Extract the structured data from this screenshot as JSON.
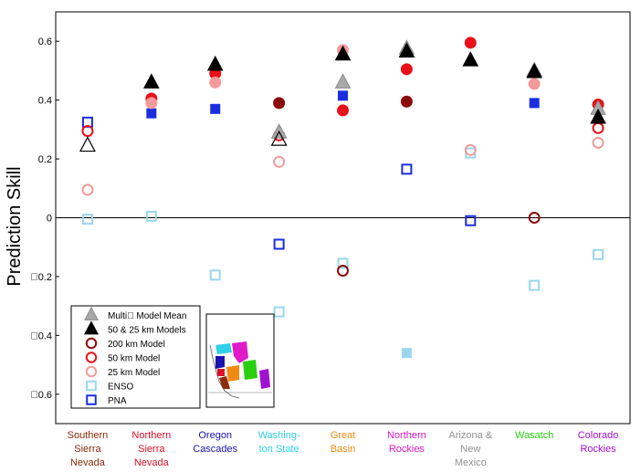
{
  "chart_data": {
    "type": "scatter",
    "ylabel": "Prediction Skill",
    "ylim": [
      -0.7,
      0.7
    ],
    "yticks": [
      "0.6",
      "0.4",
      "0.2",
      "0",
      "\u00000.2",
      "\u00000.4",
      "\u00000.6"
    ],
    "yticks_values": [
      0.6,
      0.4,
      0.2,
      0,
      -0.2,
      -0.4,
      -0.6
    ],
    "grid": false,
    "zero_line": true,
    "legend_position": "bottom-left",
    "categories": [
      {
        "lines": [
          "Southern",
          "Sierra",
          "Nevada"
        ],
        "color": "#8B2B0B"
      },
      {
        "lines": [
          "Northern",
          "Sierra",
          "Nevada"
        ],
        "color": "#E0102A"
      },
      {
        "lines": [
          "Oregon",
          "Cascades"
        ],
        "color": "#1A12B0"
      },
      {
        "lines": [
          "Washing-",
          "ton State"
        ],
        "color": "#2ED0E8"
      },
      {
        "lines": [
          "Great",
          "Basin"
        ],
        "color": "#F08A10"
      },
      {
        "lines": [
          "Northern",
          "Rockies"
        ],
        "color": "#E01AC8"
      },
      {
        "lines": [
          "Arizona &",
          "New",
          "Mexico"
        ],
        "color": "#909090"
      },
      {
        "lines": [
          "Wasatch"
        ],
        "color": "#28D010"
      },
      {
        "lines": [
          "Colorado",
          "Rockies"
        ],
        "color": "#A010D0"
      }
    ],
    "series": [
      {
        "name": "Multi Model Mean",
        "marker": "triangle-filled",
        "color": "#A8A8A8",
        "values": [
          null,
          null,
          null,
          0.29,
          0.46,
          0.575,
          null,
          0.5,
          0.37
        ]
      },
      {
        "name": "50 & 25 km Models",
        "marker": "triangle-filled",
        "color": "#000000",
        "values": [
          null,
          0.46,
          0.52,
          null,
          0.555,
          0.565,
          0.535,
          0.495,
          0.34
        ]
      },
      {
        "name": "50 & 25 km Models (open)",
        "marker": "triangle-open",
        "color": "#000000",
        "values": [
          0.245,
          null,
          null,
          0.265,
          null,
          null,
          null,
          null,
          null
        ]
      },
      {
        "name": "200 km Model",
        "marker": "circle-filled",
        "color": "#8B0A0A",
        "values": [
          null,
          null,
          null,
          0.39,
          null,
          0.395,
          null,
          null,
          null
        ]
      },
      {
        "name": "200 km Model (open)",
        "marker": "circle-open",
        "color": "#8B0A0A",
        "values": [
          null,
          null,
          null,
          null,
          -0.18,
          null,
          null,
          0.0,
          null
        ]
      },
      {
        "name": "50 km Model",
        "marker": "circle-filled",
        "color": "#E8101A",
        "values": [
          null,
          0.405,
          0.49,
          null,
          0.365,
          0.505,
          0.595,
          null,
          0.385
        ]
      },
      {
        "name": "50 km Model (open)",
        "marker": "circle-open",
        "color": "#E8101A",
        "values": [
          0.295,
          null,
          null,
          0.28,
          null,
          null,
          null,
          null,
          0.305
        ]
      },
      {
        "name": "25 km Model",
        "marker": "circle-filled",
        "color": "#F49A9A",
        "values": [
          null,
          0.39,
          0.46,
          null,
          0.57,
          null,
          null,
          0.455,
          null
        ]
      },
      {
        "name": "25 km Model (open)",
        "marker": "circle-open",
        "color": "#F49A9A",
        "values": [
          0.095,
          null,
          null,
          0.19,
          null,
          null,
          0.23,
          null,
          0.255
        ]
      },
      {
        "name": "ENSO",
        "marker": "square-open",
        "color": "#9AD6EC",
        "values": [
          -0.005,
          0.005,
          -0.195,
          -0.32,
          -0.155,
          null,
          0.22,
          -0.23,
          -0.125
        ]
      },
      {
        "name": "ENSO (filled)",
        "marker": "square-filled",
        "color": "#9AD6EC",
        "values": [
          null,
          null,
          null,
          null,
          null,
          -0.46,
          null,
          null,
          null
        ]
      },
      {
        "name": "PNA",
        "marker": "square-filled",
        "color": "#1A2EE0",
        "values": [
          null,
          0.355,
          0.37,
          null,
          0.415,
          null,
          null,
          0.39,
          null
        ]
      },
      {
        "name": "PNA (open)",
        "marker": "square-open",
        "color": "#1A2EE0",
        "values": [
          0.325,
          null,
          null,
          -0.09,
          null,
          0.165,
          -0.01,
          null,
          null
        ]
      }
    ],
    "legend": [
      {
        "label": "Multi\u0000 Model Mean",
        "marker": "triangle-filled",
        "color": "#A8A8A8"
      },
      {
        "label": "50 & 25 km Models",
        "marker": "triangle-filled",
        "color": "#000000"
      },
      {
        "label": "200 km Model",
        "marker": "circle-open",
        "color": "#8B0A0A"
      },
      {
        "label": "50 km Model",
        "marker": "circle-open",
        "color": "#E8101A"
      },
      {
        "label": "25 km Model",
        "marker": "circle-open",
        "color": "#F49A9A"
      },
      {
        "label": "ENSO",
        "marker": "square-open",
        "color": "#9AD6EC"
      },
      {
        "label": "PNA",
        "marker": "square-open",
        "color": "#1A2EE0"
      }
    ],
    "inset_map": {
      "colors": [
        "#2ED0E8",
        "#E01AC8",
        "#1A12B0",
        "#F08A10",
        "#28D010",
        "#A010D0",
        "#E0102A",
        "#8B2B0B"
      ]
    }
  }
}
